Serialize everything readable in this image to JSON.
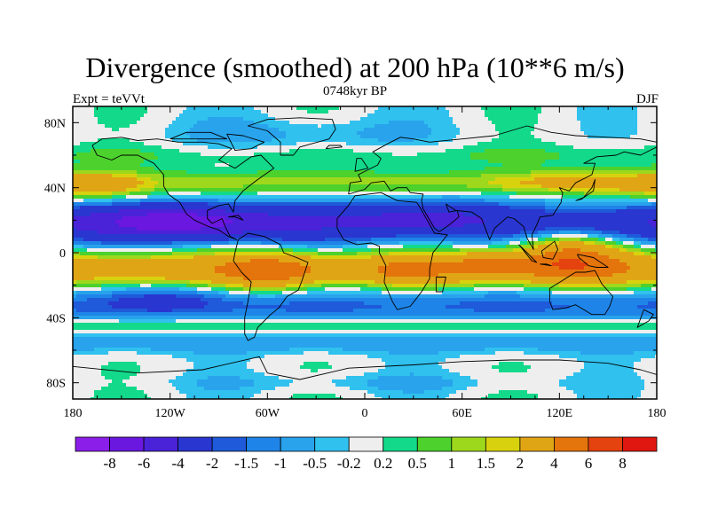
{
  "title": "Divergence (smoothed) at 200 hPa (10**6 m/s)",
  "subtitle_left": "Expt = teVVt",
  "subtitle_center": "0748kyr BP",
  "subtitle_right": "DJF",
  "lon_ticks": [
    {
      "lon": -180,
      "label": "180"
    },
    {
      "lon": -120,
      "label": "120W"
    },
    {
      "lon": -60,
      "label": "60W"
    },
    {
      "lon": 0,
      "label": "0"
    },
    {
      "lon": 60,
      "label": "60E"
    },
    {
      "lon": 120,
      "label": "120E"
    },
    {
      "lon": 180,
      "label": "180"
    }
  ],
  "lat_ticks": [
    {
      "lat": 80,
      "label": "80N"
    },
    {
      "lat": 40,
      "label": "40N"
    },
    {
      "lat": 0,
      "label": "0"
    },
    {
      "lat": -40,
      "label": "40S"
    },
    {
      "lat": -80,
      "label": "80S"
    }
  ],
  "colorbar": {
    "colors": [
      "#8b1ee8",
      "#6a17e0",
      "#4a22d8",
      "#2a36d0",
      "#1e5ad9",
      "#1f84e8",
      "#28a3ec",
      "#30c1ee",
      "#eeeeee",
      "#13d98a",
      "#4dd12d",
      "#9ed81c",
      "#d8d20e",
      "#e0a515",
      "#e4740c",
      "#e4420e",
      "#e01710"
    ],
    "labels": [
      "-8",
      "-6",
      "-4",
      "-2",
      "-1.5",
      "-1",
      "-0.5",
      "-0.2",
      "0.2",
      "0.5",
      "1",
      "1.5",
      "2",
      "4",
      "6",
      "8"
    ]
  },
  "chart_data": {
    "type": "heatmap",
    "projection": "cylindrical-equidistant",
    "field": "Divergence (smoothed) at 200 hPa",
    "units": "10**6 m/s",
    "season": "DJF",
    "experiment": "teVVt",
    "period": "0748kyr BP",
    "lon_range": [
      -180,
      180
    ],
    "lat_range": [
      -90,
      90
    ],
    "contour_levels": [
      -8,
      -6,
      -4,
      -2,
      -1.5,
      -1,
      -0.5,
      -0.2,
      0.2,
      0.5,
      1,
      1.5,
      2,
      4,
      6,
      8
    ],
    "features": [
      {
        "name": "subtropical convergence band",
        "lat_center": 18,
        "sign": "negative",
        "min_level": -6
      },
      {
        "name": "tropical divergence band",
        "lat_center": -10,
        "sign": "positive",
        "max_level": 6
      },
      {
        "name": "maritime continent divergence maximum",
        "lon": 120,
        "lat": 0,
        "sign": "positive",
        "max_level": 6
      },
      {
        "name": "southern subtropical convergence",
        "lat_center": -35,
        "sign": "negative",
        "min_level": -1.5
      },
      {
        "name": "northern midlatitude divergence",
        "lat_center": 42,
        "sign": "positive",
        "max_level": 4
      }
    ]
  }
}
